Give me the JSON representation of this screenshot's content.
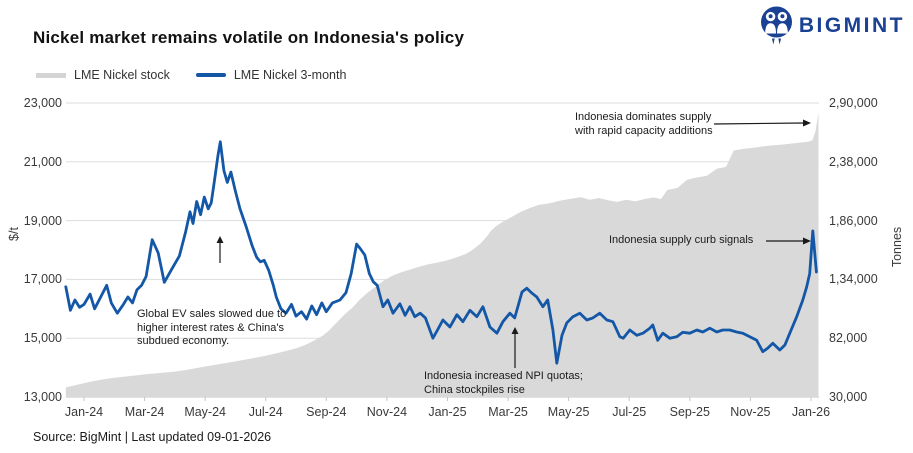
{
  "header": {
    "title": "Nickel market remains volatile on Indonesia's policy",
    "brand": "BIGMINT"
  },
  "legend": {
    "stock_label": "LME Nickel stock",
    "price_label": "LME Nickel 3-month"
  },
  "source": "Source: BigMint | Last updated 09-01-2026",
  "annotations": {
    "dominates_supply": {
      "text": "Indonesia dominates supply with rapid capacity additions"
    },
    "supply_curb": {
      "text": "Indonesia supply curb signals"
    },
    "ev_slowdown": {
      "text": "Global EV sales slowed due to higher interest rates & China's subdued economy."
    },
    "npi_quotas": {
      "text": "Indonesia increased NPI quotas; China stockpiles rise"
    }
  },
  "colors": {
    "price_line": "#1357a6",
    "stock_area": "#d9d9d9",
    "brand_navy": "#1b4194",
    "grid": "#dedede",
    "axis_line": "#c4c4c4"
  },
  "chart_data": {
    "type": "area",
    "note": "t = months after Jan-24 tick; price in $/t on left axis; stock in tonnes on right axis",
    "x_axis": {
      "labels": [
        "Jan-24",
        "Mar-24",
        "May-24",
        "Jul-24",
        "Sep-24",
        "Nov-24",
        "Jan-25",
        "Mar-25",
        "May-25",
        "Jul-25",
        "Sep-25",
        "Nov-25",
        "Jan-26"
      ],
      "t_values": [
        0,
        2,
        4,
        6,
        8,
        10,
        12,
        14,
        16,
        18,
        20,
        22,
        24
      ]
    },
    "left_axis": {
      "label": "$/t",
      "ticks": [
        "23,000",
        "21,000",
        "19,000",
        "17,000",
        "15,000",
        "13,000"
      ],
      "range": [
        13000,
        23000
      ]
    },
    "right_axis": {
      "label": "Tonnes",
      "ticks": [
        "2,90,000",
        "2,38,000",
        "1,86,000",
        "1,34,000",
        "82,000",
        "30,000"
      ],
      "range": [
        30000,
        290000
      ]
    },
    "series": [
      {
        "name": "LME Nickel stock",
        "type": "area",
        "axis": "right",
        "unit": "Tonnes",
        "color": "#d9d9d9",
        "points": [
          [
            -0.6,
            38500
          ],
          [
            -0.2,
            41000
          ],
          [
            0.2,
            43500
          ],
          [
            0.6,
            45500
          ],
          [
            1.0,
            47000
          ],
          [
            1.5,
            48500
          ],
          [
            2.0,
            50000
          ],
          [
            2.5,
            51200
          ],
          [
            3.0,
            52500
          ],
          [
            3.5,
            54500
          ],
          [
            4.0,
            57000
          ],
          [
            4.5,
            59200
          ],
          [
            5.0,
            61500
          ],
          [
            5.5,
            64000
          ],
          [
            6.0,
            66500
          ],
          [
            6.5,
            69500
          ],
          [
            7.0,
            73000
          ],
          [
            7.3,
            76000
          ],
          [
            7.6,
            80000
          ],
          [
            7.9,
            84500
          ],
          [
            8.1,
            89000
          ],
          [
            8.35,
            96000
          ],
          [
            8.6,
            103000
          ],
          [
            8.9,
            110000
          ],
          [
            9.1,
            116000
          ],
          [
            9.35,
            122000
          ],
          [
            9.6,
            127000
          ],
          [
            9.9,
            133000
          ],
          [
            10.2,
            137500
          ],
          [
            10.5,
            140500
          ],
          [
            10.8,
            143000
          ],
          [
            11.1,
            145500
          ],
          [
            11.4,
            147500
          ],
          [
            11.7,
            149000
          ],
          [
            12.0,
            151000
          ],
          [
            12.3,
            153500
          ],
          [
            12.6,
            156500
          ],
          [
            12.85,
            160500
          ],
          [
            13.1,
            166000
          ],
          [
            13.3,
            172000
          ],
          [
            13.45,
            177500
          ],
          [
            13.6,
            181000
          ],
          [
            13.8,
            184500
          ],
          [
            14.1,
            189000
          ],
          [
            14.4,
            193500
          ],
          [
            14.7,
            197000
          ],
          [
            15.0,
            199800
          ],
          [
            15.4,
            201500
          ],
          [
            15.7,
            203500
          ],
          [
            16.0,
            205000
          ],
          [
            16.4,
            206800
          ],
          [
            16.7,
            204500
          ],
          [
            17.0,
            206000
          ],
          [
            17.3,
            204000
          ],
          [
            17.6,
            202500
          ],
          [
            17.9,
            204500
          ],
          [
            18.2,
            203000
          ],
          [
            18.5,
            205000
          ],
          [
            18.8,
            206500
          ],
          [
            19.05,
            205000
          ],
          [
            19.25,
            213000
          ],
          [
            19.6,
            215000
          ],
          [
            19.9,
            222000
          ],
          [
            20.2,
            224000
          ],
          [
            20.55,
            225500
          ],
          [
            20.9,
            232000
          ],
          [
            21.2,
            233500
          ],
          [
            21.45,
            248000
          ],
          [
            21.8,
            249500
          ],
          [
            22.1,
            250500
          ],
          [
            22.4,
            251500
          ],
          [
            22.7,
            252500
          ],
          [
            23.0,
            253000
          ],
          [
            23.3,
            254000
          ],
          [
            23.6,
            254800
          ],
          [
            23.9,
            255800
          ],
          [
            24.05,
            257000
          ],
          [
            24.15,
            265000
          ],
          [
            24.25,
            281500
          ]
        ]
      },
      {
        "name": "LME Nickel 3-month",
        "type": "line",
        "axis": "left",
        "unit": "$/t",
        "color": "#1357a6",
        "points": [
          [
            -0.6,
            16750
          ],
          [
            -0.45,
            15950
          ],
          [
            -0.3,
            16300
          ],
          [
            -0.15,
            16050
          ],
          [
            0,
            16150
          ],
          [
            0.2,
            16500
          ],
          [
            0.35,
            16000
          ],
          [
            0.55,
            16400
          ],
          [
            0.75,
            16800
          ],
          [
            0.9,
            16200
          ],
          [
            1.1,
            15850
          ],
          [
            1.3,
            16150
          ],
          [
            1.45,
            16400
          ],
          [
            1.6,
            16200
          ],
          [
            1.75,
            16650
          ],
          [
            1.9,
            16800
          ],
          [
            2.05,
            17100
          ],
          [
            2.25,
            18350
          ],
          [
            2.45,
            17900
          ],
          [
            2.65,
            16900
          ],
          [
            2.9,
            17350
          ],
          [
            3.15,
            17800
          ],
          [
            3.35,
            18600
          ],
          [
            3.5,
            19300
          ],
          [
            3.6,
            18900
          ],
          [
            3.72,
            19650
          ],
          [
            3.85,
            19200
          ],
          [
            3.97,
            19800
          ],
          [
            4.1,
            19400
          ],
          [
            4.2,
            19600
          ],
          [
            4.3,
            20300
          ],
          [
            4.42,
            21200
          ],
          [
            4.5,
            21680
          ],
          [
            4.62,
            20700
          ],
          [
            4.73,
            20300
          ],
          [
            4.85,
            20650
          ],
          [
            5.0,
            20000
          ],
          [
            5.15,
            19400
          ],
          [
            5.35,
            18800
          ],
          [
            5.55,
            18150
          ],
          [
            5.7,
            17750
          ],
          [
            5.82,
            17600
          ],
          [
            5.95,
            17650
          ],
          [
            6.1,
            17300
          ],
          [
            6.25,
            16800
          ],
          [
            6.35,
            16400
          ],
          [
            6.5,
            16000
          ],
          [
            6.67,
            15850
          ],
          [
            6.85,
            16150
          ],
          [
            7.0,
            15750
          ],
          [
            7.18,
            15900
          ],
          [
            7.35,
            15650
          ],
          [
            7.52,
            16100
          ],
          [
            7.68,
            15800
          ],
          [
            7.85,
            16200
          ],
          [
            8.0,
            15900
          ],
          [
            8.2,
            16200
          ],
          [
            8.45,
            16300
          ],
          [
            8.65,
            16550
          ],
          [
            8.82,
            17200
          ],
          [
            9.0,
            18200
          ],
          [
            9.12,
            18050
          ],
          [
            9.27,
            17830
          ],
          [
            9.42,
            17200
          ],
          [
            9.55,
            16920
          ],
          [
            9.68,
            16800
          ],
          [
            9.87,
            16070
          ],
          [
            10.03,
            16300
          ],
          [
            10.2,
            15850
          ],
          [
            10.43,
            16170
          ],
          [
            10.6,
            15780
          ],
          [
            10.76,
            16070
          ],
          [
            10.92,
            15730
          ],
          [
            11.1,
            15850
          ],
          [
            11.27,
            15690
          ],
          [
            11.52,
            15000
          ],
          [
            11.67,
            15280
          ],
          [
            11.85,
            15620
          ],
          [
            12.08,
            15380
          ],
          [
            12.31,
            15800
          ],
          [
            12.51,
            15560
          ],
          [
            12.74,
            15950
          ],
          [
            12.97,
            15730
          ],
          [
            13.17,
            16070
          ],
          [
            13.4,
            15380
          ],
          [
            13.63,
            15170
          ],
          [
            13.83,
            15560
          ],
          [
            14.06,
            15850
          ],
          [
            14.22,
            15690
          ],
          [
            14.46,
            16570
          ],
          [
            14.62,
            16700
          ],
          [
            14.79,
            16530
          ],
          [
            14.95,
            16400
          ],
          [
            15.15,
            16070
          ],
          [
            15.31,
            16300
          ],
          [
            15.48,
            15280
          ],
          [
            15.61,
            14150
          ],
          [
            15.78,
            15100
          ],
          [
            15.94,
            15520
          ],
          [
            16.14,
            15730
          ],
          [
            16.37,
            15850
          ],
          [
            16.6,
            15620
          ],
          [
            16.8,
            15690
          ],
          [
            17.03,
            15850
          ],
          [
            17.26,
            15620
          ],
          [
            17.46,
            15560
          ],
          [
            17.69,
            15050
          ],
          [
            17.8,
            15000
          ],
          [
            18.02,
            15280
          ],
          [
            18.25,
            15100
          ],
          [
            18.45,
            15170
          ],
          [
            18.68,
            15340
          ],
          [
            18.78,
            15450
          ],
          [
            18.94,
            14930
          ],
          [
            19.11,
            15170
          ],
          [
            19.34,
            15000
          ],
          [
            19.57,
            15050
          ],
          [
            19.77,
            15200
          ],
          [
            20.0,
            15170
          ],
          [
            20.23,
            15280
          ],
          [
            20.43,
            15210
          ],
          [
            20.66,
            15340
          ],
          [
            20.89,
            15210
          ],
          [
            21.09,
            15280
          ],
          [
            21.32,
            15280
          ],
          [
            21.55,
            15210
          ],
          [
            21.75,
            15170
          ],
          [
            21.98,
            15050
          ],
          [
            22.21,
            14930
          ],
          [
            22.41,
            14540
          ],
          [
            22.57,
            14660
          ],
          [
            22.74,
            14830
          ],
          [
            22.97,
            14600
          ],
          [
            23.14,
            14770
          ],
          [
            23.3,
            15170
          ],
          [
            23.53,
            15730
          ],
          [
            23.73,
            16300
          ],
          [
            23.86,
            16750
          ],
          [
            23.96,
            17200
          ],
          [
            24.06,
            18650
          ],
          [
            24.18,
            17250
          ]
        ]
      }
    ]
  }
}
